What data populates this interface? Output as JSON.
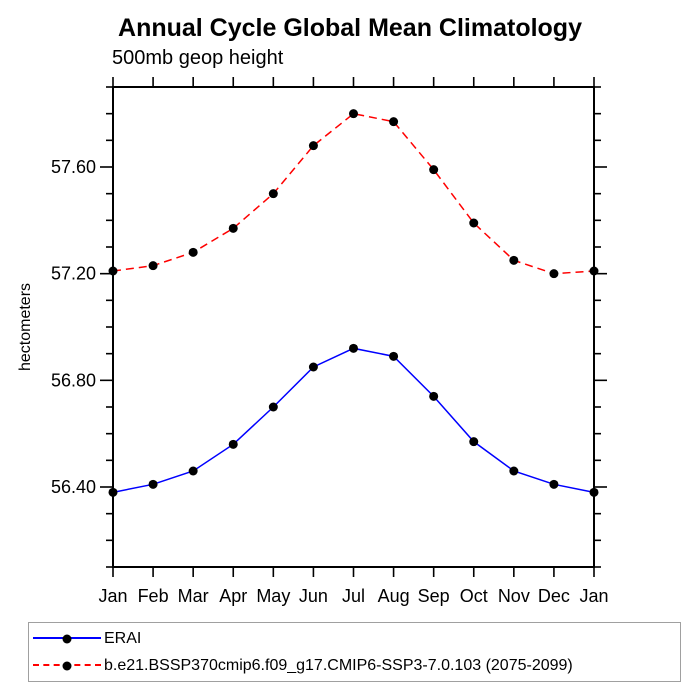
{
  "chart_data": {
    "type": "line",
    "title": "Annual Cycle Global Mean Climatology",
    "subtitle": "500mb geop height",
    "ylabel": "hectometers",
    "xlabel": "",
    "x_categories": [
      "Jan",
      "Feb",
      "Mar",
      "Apr",
      "May",
      "Jun",
      "Jul",
      "Aug",
      "Sep",
      "Oct",
      "Nov",
      "Dec",
      "Jan"
    ],
    "ylim": [
      56.1,
      57.9
    ],
    "ytick_major": [
      56.4,
      56.8,
      57.2,
      57.6
    ],
    "ytick_labels": [
      "56.40",
      "56.80",
      "57.20",
      "57.60"
    ],
    "ytick_minor_step": 0.1,
    "grid": false,
    "legend_position": "bottom-left-box",
    "series": [
      {
        "name": "ERAI",
        "slug": "erai",
        "color": "#0000ff",
        "style": "solid",
        "marker": "filled-circle",
        "marker_color": "#000000",
        "values": [
          56.38,
          56.41,
          56.46,
          56.56,
          56.7,
          56.85,
          56.92,
          56.89,
          56.74,
          56.57,
          56.46,
          56.41,
          56.38
        ]
      },
      {
        "name": "b.e21.BSSP370cmip6.f09_g17.CMIP6-SSP3-7.0.103 (2075-2099)",
        "slug": "model",
        "color": "#ff0000",
        "style": "dashed",
        "marker": "filled-circle",
        "marker_color": "#000000",
        "values": [
          57.21,
          57.23,
          57.28,
          57.37,
          57.5,
          57.68,
          57.8,
          57.77,
          57.59,
          57.39,
          57.25,
          57.2,
          57.21
        ]
      }
    ]
  },
  "colors": {
    "axis": "#000000",
    "text": "#000000",
    "series_blue": "#0000ff",
    "series_red": "#ff0000",
    "legend_border": "#a0a0a0",
    "background": "#ffffff"
  }
}
